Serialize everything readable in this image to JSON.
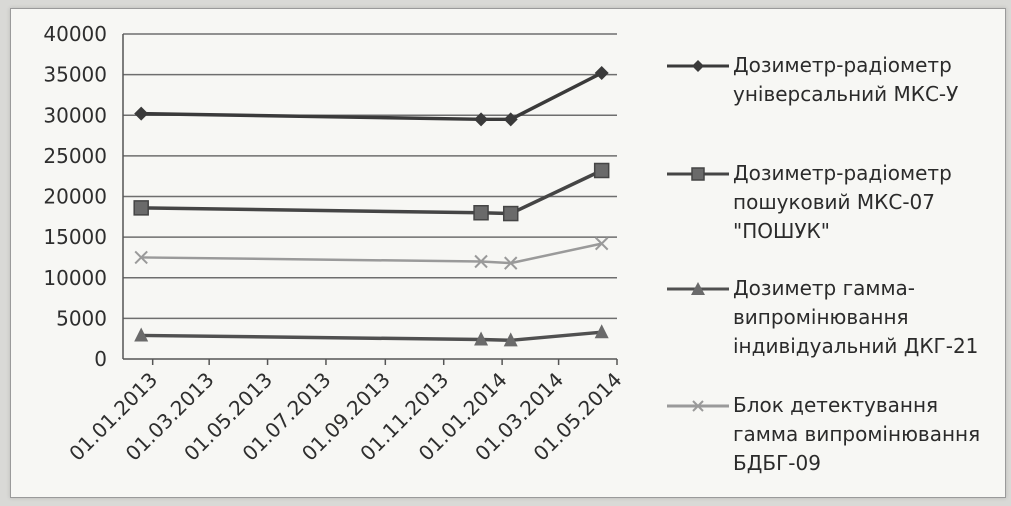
{
  "chart_data": {
    "type": "line",
    "categories": [
      "01.01.2013",
      "01.03.2013",
      "01.05.2013",
      "01.07.2013",
      "01.09.2013",
      "01.11.2013",
      "01.01.2014",
      "01.03.2014",
      "01.05.2014"
    ],
    "x_start": "2012-12-01",
    "x_end": "2014-05-01",
    "ylim": [
      0,
      40000
    ],
    "yticks": [
      0,
      5000,
      10000,
      15000,
      20000,
      25000,
      30000,
      35000,
      40000
    ],
    "grid": "horizontal",
    "legend_position": "right",
    "xtick_rotation": -45,
    "series": [
      {
        "name": "Дозиметр-радіометр\nуніверсальний МКС-У",
        "marker": "diamond",
        "color": "#3a3a3a",
        "points": [
          {
            "x": "2012-12-20",
            "y": 30200
          },
          {
            "x": "2013-12-10",
            "y": 29500
          },
          {
            "x": "2014-01-10",
            "y": 29500
          },
          {
            "x": "2014-04-15",
            "y": 35200
          }
        ]
      },
      {
        "name": "Дозиметр-радіометр\nпошуковий МКС-07\n\"ПОШУК\"",
        "marker": "square",
        "color": "#454545",
        "points": [
          {
            "x": "2012-12-20",
            "y": 18600
          },
          {
            "x": "2013-12-10",
            "y": 18000
          },
          {
            "x": "2014-01-10",
            "y": 17900
          },
          {
            "x": "2014-04-15",
            "y": 23200
          }
        ]
      },
      {
        "name": "Дозиметр гамма-\nвипромінювання\nіндивідуальний ДКГ-21",
        "marker": "triangle",
        "color": "#505050",
        "points": [
          {
            "x": "2012-12-20",
            "y": 2900
          },
          {
            "x": "2013-12-10",
            "y": 2400
          },
          {
            "x": "2014-01-10",
            "y": 2300
          },
          {
            "x": "2014-04-15",
            "y": 3300
          }
        ]
      },
      {
        "name": "Блок детектування\nгамма випромінювання\nБДБГ-09",
        "marker": "x",
        "color": "#9a9a9a",
        "points": [
          {
            "x": "2012-12-20",
            "y": 12500
          },
          {
            "x": "2013-12-10",
            "y": 12000
          },
          {
            "x": "2014-01-10",
            "y": 11800
          },
          {
            "x": "2014-04-15",
            "y": 14200
          }
        ]
      }
    ]
  }
}
